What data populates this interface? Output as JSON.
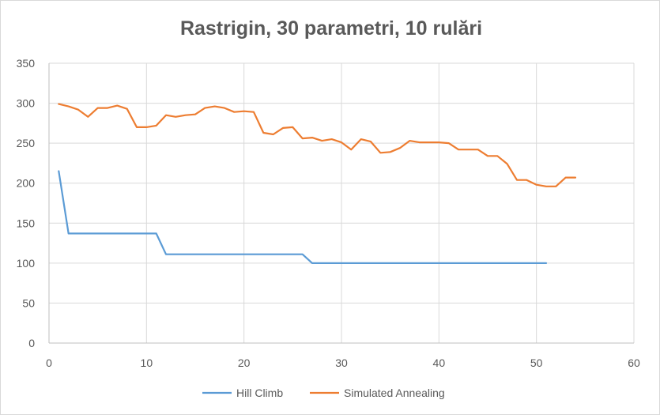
{
  "chart_data": {
    "type": "line",
    "title": "Rastrigin, 30 parametri, 10 rulări",
    "xlabel": "",
    "ylabel": "",
    "xlim": [
      0,
      60
    ],
    "ylim": [
      0,
      350
    ],
    "x_ticks": [
      0,
      10,
      20,
      30,
      40,
      50,
      60
    ],
    "y_ticks": [
      0,
      50,
      100,
      150,
      200,
      250,
      300,
      350
    ],
    "grid": true,
    "legend_position": "bottom",
    "series": [
      {
        "name": "Hill Climb",
        "color": "#5b9bd5",
        "x": [
          1,
          2,
          3,
          4,
          5,
          6,
          7,
          8,
          9,
          10,
          11,
          12,
          13,
          14,
          15,
          16,
          17,
          18,
          19,
          20,
          21,
          22,
          23,
          24,
          25,
          26,
          27,
          28,
          29,
          30,
          31,
          32,
          33,
          34,
          35,
          36,
          37,
          38,
          39,
          40,
          41,
          42,
          43,
          44,
          45,
          46,
          47,
          48,
          49,
          50,
          51
        ],
        "values": [
          215,
          137,
          137,
          137,
          137,
          137,
          137,
          137,
          137,
          137,
          137,
          111,
          111,
          111,
          111,
          111,
          111,
          111,
          111,
          111,
          111,
          111,
          111,
          111,
          111,
          111,
          100,
          100,
          100,
          100,
          100,
          100,
          100,
          100,
          100,
          100,
          100,
          100,
          100,
          100,
          100,
          100,
          100,
          100,
          100,
          100,
          100,
          100,
          100,
          100,
          100
        ]
      },
      {
        "name": "Simulated Annealing",
        "color": "#ed7d31",
        "x": [
          1,
          2,
          3,
          4,
          5,
          6,
          7,
          8,
          9,
          10,
          11,
          12,
          13,
          14,
          15,
          16,
          17,
          18,
          19,
          20,
          21,
          22,
          23,
          24,
          25,
          26,
          27,
          28,
          29,
          30,
          31,
          32,
          33,
          34,
          35,
          36,
          37,
          38,
          39,
          40,
          41,
          42,
          43,
          44,
          45,
          46,
          47,
          48,
          49,
          50,
          51,
          52,
          53,
          54
        ],
        "values": [
          299,
          296,
          292,
          283,
          294,
          294,
          297,
          293,
          270,
          270,
          272,
          285,
          283,
          285,
          286,
          294,
          296,
          294,
          289,
          290,
          289,
          263,
          261,
          269,
          270,
          256,
          257,
          253,
          255,
          251,
          242,
          255,
          252,
          238,
          239,
          244,
          253,
          251,
          251,
          251,
          250,
          242,
          242,
          242,
          234,
          234,
          224,
          204,
          204,
          198,
          196,
          196,
          207,
          207
        ]
      }
    ]
  }
}
